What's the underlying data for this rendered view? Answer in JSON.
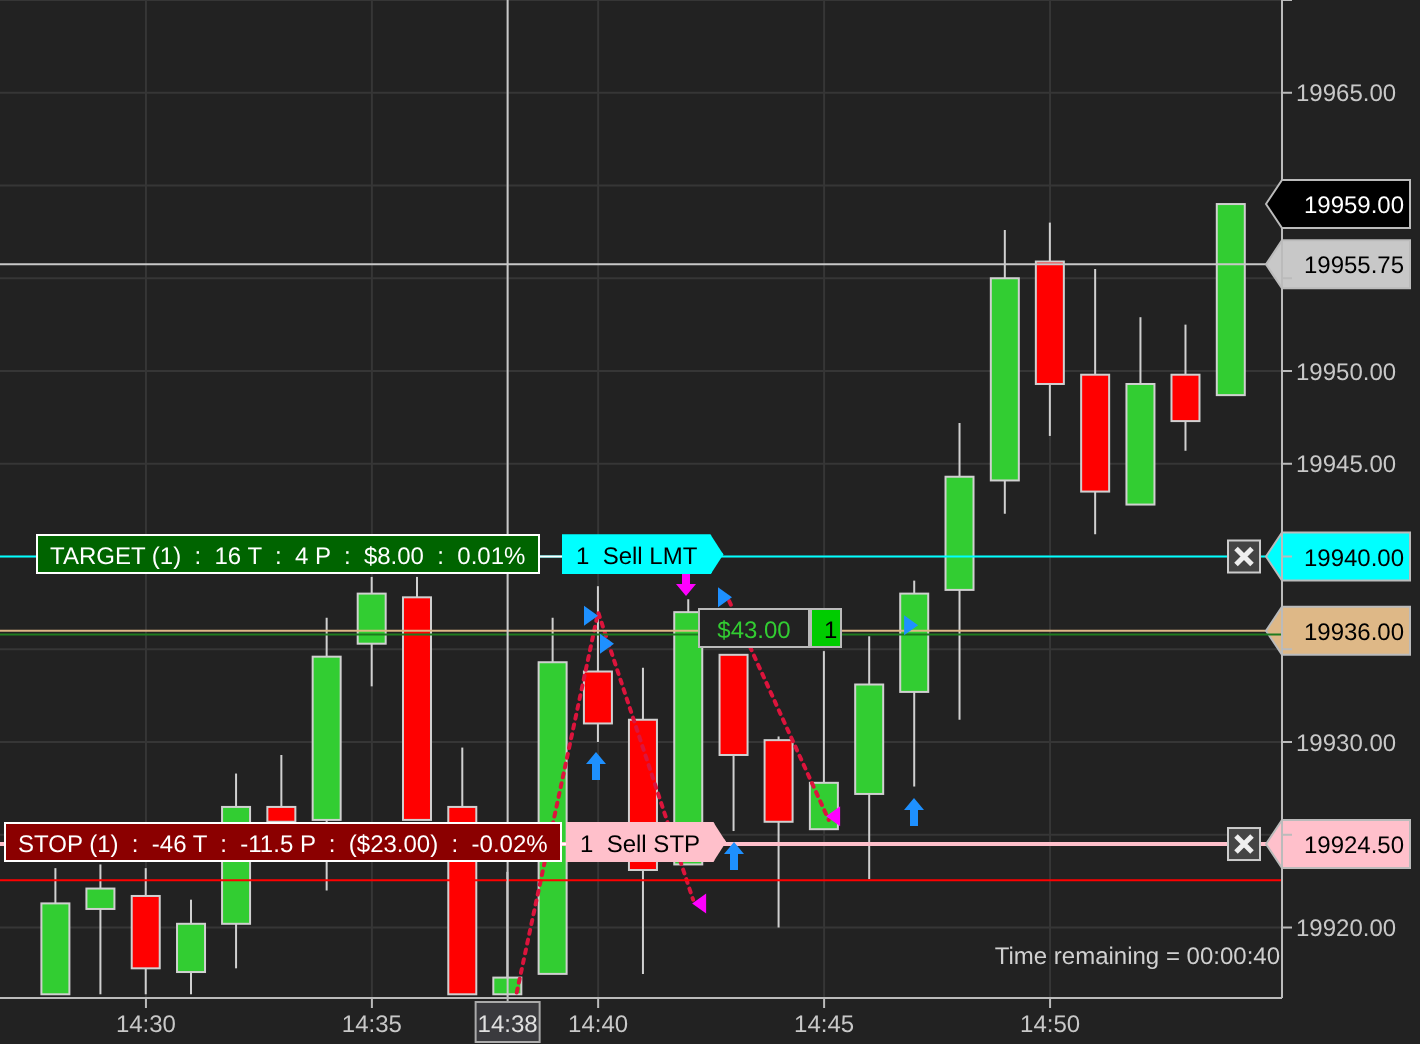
{
  "chart_data": {
    "type": "candlestick",
    "x": [
      14.4667,
      14.4833,
      14.5,
      14.5167,
      14.5333,
      14.55,
      14.5667,
      14.5833,
      14.6,
      14.6167,
      14.6333,
      14.65,
      14.6667,
      14.6833,
      14.7,
      14.7167,
      14.7333,
      14.75,
      14.7667,
      14.7833,
      14.8,
      14.8167,
      14.8333,
      14.85,
      14.8667,
      14.8833,
      14.9
    ],
    "ohlc": [
      [
        19916.4,
        19923.2,
        19916.4,
        19921.3
      ],
      [
        19921.0,
        19923.4,
        19916.4,
        19922.1
      ],
      [
        19921.7,
        19923.2,
        19916.4,
        19917.8
      ],
      [
        19917.6,
        19921.5,
        19916.4,
        19920.2
      ],
      [
        19920.2,
        19928.3,
        19917.8,
        19926.5
      ],
      [
        19926.5,
        19929.3,
        19925.7,
        19925.7
      ],
      [
        19925.8,
        19936.7,
        19922.0,
        19934.6
      ],
      [
        19935.3,
        19938.9,
        19933.0,
        19938.0
      ],
      [
        19937.8,
        19938.9,
        19925.8,
        19925.8
      ],
      [
        19926.5,
        19929.7,
        19916.4,
        19916.4
      ],
      [
        19916.4,
        19923.0,
        19916.4,
        19917.3
      ],
      [
        19917.5,
        19936.7,
        19917.5,
        19934.3
      ],
      [
        19933.8,
        19938.4,
        19930.0,
        19931.0
      ],
      [
        19931.2,
        19934.0,
        19917.5,
        19923.1
      ],
      [
        19923.4,
        19937.7,
        19923.4,
        19937.0
      ],
      [
        19934.7,
        19934.7,
        19925.2,
        19929.3
      ],
      [
        19930.1,
        19930.3,
        19920.0,
        19925.7
      ],
      [
        19925.3,
        19934.9,
        19925.3,
        19927.8
      ],
      [
        19927.2,
        19935.7,
        19922.6,
        19933.1
      ],
      [
        19932.7,
        19938.7,
        19927.6,
        19938.0
      ],
      [
        19938.2,
        19947.2,
        19931.2,
        19944.3
      ],
      [
        19944.1,
        19957.6,
        19942.3,
        19955.0
      ],
      [
        19955.9,
        19958.0,
        19946.5,
        19949.3
      ],
      [
        19949.8,
        19955.5,
        19941.2,
        19943.5
      ],
      [
        19942.8,
        19952.9,
        19942.8,
        19949.3
      ],
      [
        19949.8,
        19952.5,
        19945.7,
        19947.3
      ],
      [
        19948.7,
        19959.0,
        19948.7,
        19959.0
      ]
    ],
    "colors": [
      "#32cd32",
      "#32cd32",
      "#ff0000",
      "#32cd32",
      "#32cd32",
      "#ff0000",
      "#32cd32",
      "#32cd32",
      "#ff0000",
      "#ff0000",
      "#32cd32",
      "#32cd32",
      "#ff0000",
      "#ff0000",
      "#32cd32",
      "#ff0000",
      "#ff0000",
      "#32cd32",
      "#32cd32",
      "#32cd32",
      "#32cd32",
      "#32cd32",
      "#ff0000",
      "#ff0000",
      "#32cd32",
      "#ff0000",
      "#32cd32"
    ],
    "series": [
      {
        "type": "line",
        "x": [
          14.6367,
          14.6667,
          14.7017
        ],
        "values": [
          19916.5,
          19937.0,
          19921.5
        ],
        "color": "#dc143c",
        "line_style": "dotted"
      },
      {
        "type": "line",
        "x": [
          14.715,
          14.7517
        ],
        "values": [
          19937.6,
          19925.8
        ],
        "color": "#dc143c",
        "line_style": "dotted"
      },
      {
        "type": "scatter",
        "x": [
          14.6637,
          14.6696,
          14.7131,
          14.7817
        ],
        "values": [
          19936.8,
          19935.3,
          19937.8,
          19936.3
        ],
        "color": "#1e90ff",
        "marker": "triangle"
      },
      {
        "type": "scatter",
        "x": [
          14.7043,
          14.7537
        ],
        "values": [
          19921.3,
          19926.0
        ],
        "color": "#ff00ff",
        "marker": "triangle"
      }
    ],
    "xlim": [
      14.4462,
      14.9188
    ],
    "xticks": [
      {
        "value": 14.5,
        "label": "14:30"
      },
      {
        "value": 14.5833,
        "label": "14:35"
      },
      {
        "value": 14.633333,
        "label": "14:38"
      },
      {
        "value": 14.6667,
        "label": "14:40"
      },
      {
        "value": 14.75,
        "label": "14:45"
      },
      {
        "value": 14.8333,
        "label": "14:50"
      }
    ],
    "ylim": [
      19916.2,
      19970
    ],
    "yticks": [
      {
        "value": 19920,
        "label": "19920.00"
      },
      {
        "value": 19925,
        "label": null
      },
      {
        "value": 19930,
        "label": "19930.00"
      },
      {
        "value": 19935,
        "label": null
      },
      {
        "value": 19940,
        "label": null
      },
      {
        "value": 19945,
        "label": "19945.00"
      },
      {
        "value": 19950,
        "label": "19950.00"
      },
      {
        "value": 19955,
        "label": null
      },
      {
        "value": 19960,
        "label": null
      },
      {
        "value": 19965,
        "label": "19965.00"
      },
      {
        "value": 19970,
        "label": null
      }
    ],
    "grid": true,
    "ref_lines": [
      {
        "axis": "y",
        "value": 19940,
        "label": "19940.00",
        "color": "#00ffff"
      },
      {
        "axis": "y",
        "value": 19936,
        "label": "19936.00",
        "color": "#deb887"
      },
      {
        "axis": "y",
        "value": 19924.5,
        "label": "19924.50",
        "color": "#ffc0cb"
      },
      {
        "axis": "y",
        "value": 19935.8,
        "label": null,
        "color": "#1e7b1e"
      },
      {
        "axis": "y",
        "value": 19922.55,
        "label": null,
        "color": "#ff0000"
      },
      {
        "axis": "y",
        "value": 19955.75,
        "label": "19955.75",
        "color": "#c8c8c8"
      },
      {
        "axis": "x",
        "value": 14.633333,
        "label": null,
        "color": "#c8c8c8"
      }
    ],
    "annotations": [
      {
        "text": "TARGET (1)  :  16 T  :  4 P  :  $8.00  :  0.01%",
        "y": 19940
      },
      {
        "text": "1  Sell LMT",
        "y": 19940
      },
      {
        "text": "STOP (1)  :  -46 T  :  -11.5 P  :  ($23.00)  :  -0.02%",
        "y": 19924.5
      },
      {
        "text": "1  Sell STP",
        "y": 19924.5
      },
      {
        "text": "$43.00",
        "y": 19936
      },
      {
        "text": "1",
        "y": 19936
      },
      "19959.00",
      "Time remaining = 00:00:40"
    ]
  }
}
